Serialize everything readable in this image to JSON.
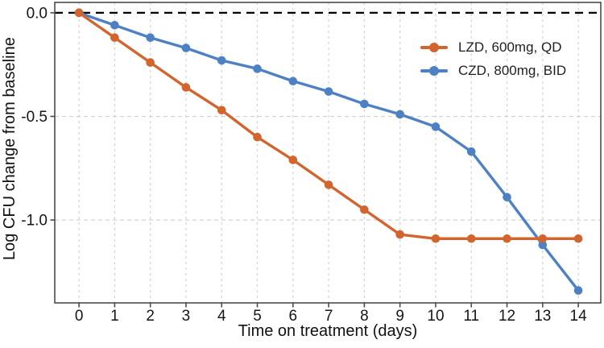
{
  "chart_data": {
    "type": "line",
    "title": "",
    "xlabel": "Time on treatment (days)",
    "ylabel": "Log CFU change from baseline",
    "x": [
      0,
      1,
      2,
      3,
      4,
      5,
      6,
      7,
      8,
      9,
      10,
      11,
      12,
      13,
      14
    ],
    "series": [
      {
        "name": "LZD, 600mg, QD",
        "color": "#d2642e",
        "values": [
          0.0,
          -0.12,
          -0.24,
          -0.36,
          -0.47,
          -0.6,
          -0.71,
          -0.83,
          -0.95,
          -1.07,
          -1.09,
          -1.09,
          -1.09,
          -1.09,
          -1.09
        ]
      },
      {
        "name": "CZD, 800mg, BID",
        "color": "#4e81c4",
        "values": [
          0.0,
          -0.06,
          -0.12,
          -0.17,
          -0.23,
          -0.27,
          -0.33,
          -0.38,
          -0.44,
          -0.49,
          -0.55,
          -0.67,
          -0.89,
          -1.12,
          -1.34
        ]
      }
    ],
    "x_ticks": [
      {
        "value": 0,
        "label": "0"
      },
      {
        "value": 1,
        "label": "1"
      },
      {
        "value": 2,
        "label": "2"
      },
      {
        "value": 3,
        "label": "3"
      },
      {
        "value": 4,
        "label": "4"
      },
      {
        "value": 5,
        "label": "5"
      },
      {
        "value": 6,
        "label": "6"
      },
      {
        "value": 7,
        "label": "7"
      },
      {
        "value": 8,
        "label": "8"
      },
      {
        "value": 9,
        "label": "9"
      },
      {
        "value": 10,
        "label": "10"
      },
      {
        "value": 11,
        "label": "11"
      },
      {
        "value": 12,
        "label": "12"
      },
      {
        "value": 13,
        "label": "13"
      },
      {
        "value": 14,
        "label": "14"
      }
    ],
    "y_ticks": [
      {
        "value": 0.0,
        "label": "0.0"
      },
      {
        "value": -0.5,
        "label": "-0.5"
      },
      {
        "value": -1.0,
        "label": "-1.0"
      }
    ],
    "xlim": [
      -0.68,
      14.63
    ],
    "ylim": [
      -1.4,
      0.05
    ],
    "grid": "dashed vertical gridline at each day; dashed horizontal gridlines at y ticks",
    "legend_position": "upper-right-inside",
    "reference_line": {
      "y": 0.0,
      "style": "dashed",
      "color": "#000000"
    },
    "style": {
      "grid_color": "#d2d2d2",
      "frame_color": "#4b4b4b",
      "text_color": "#151515"
    }
  }
}
